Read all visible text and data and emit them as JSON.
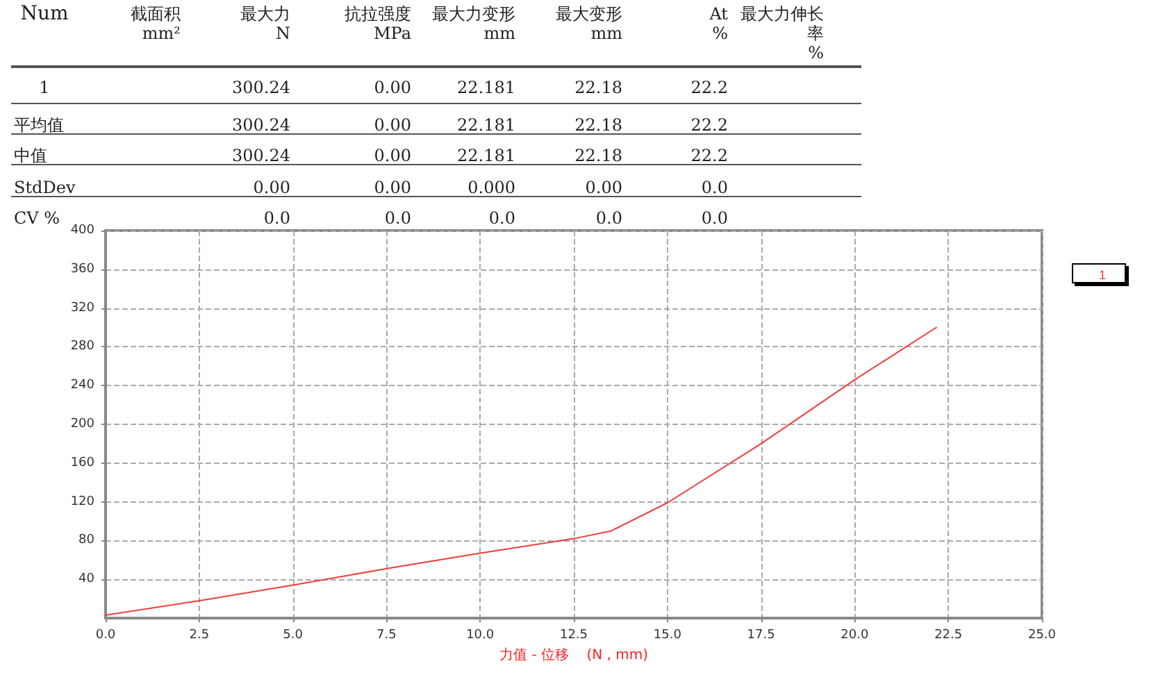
{
  "chart_data": {
    "type": "line",
    "xlabel": "力值 - 位移    (N , mm)",
    "annotations": [
      "Num",
      "截面积\nmm²",
      "最大力\nN",
      "抗拉强度\nMPa",
      "最大力变形\nmm",
      "最大变形\nmm",
      "At\n%",
      "最大力伸长率\n%",
      "1",
      "300.24",
      "0.00",
      "22.181",
      "22.18",
      "22.2",
      "平均值",
      "300.24",
      "0.00",
      "22.181",
      "22.18",
      "22.2",
      "中值",
      "300.24",
      "0.00",
      "22.181",
      "22.18",
      "22.2",
      "StdDev",
      "0.00",
      "0.00",
      "0.000",
      "0.00",
      "0.0",
      "CV %",
      "0.0",
      "0.0",
      "0.0",
      "0.0",
      "0.0"
    ],
    "series": [
      {
        "name": "1",
        "color": "#f03c3c",
        "x": [
          0,
          2.5,
          5,
          7.5,
          10,
          12.5,
          13.5,
          15,
          17.5,
          20,
          22.18
        ],
        "values": [
          3,
          18,
          34,
          51,
          67,
          82,
          90,
          119,
          180,
          246,
          300
        ]
      }
    ],
    "xlim": [
      0,
      25
    ],
    "xticks": [
      {
        "value": 0,
        "label": "0.0"
      },
      2.5,
      {
        "value": 5,
        "label": "5.0"
      },
      7.5,
      {
        "value": 10,
        "label": "10.0"
      },
      12.5,
      {
        "value": 15,
        "label": "15.0"
      },
      17.5,
      {
        "value": 20,
        "label": "20.0"
      },
      22.5,
      {
        "value": 25,
        "label": "25.0"
      }
    ],
    "ylim": [
      0,
      400
    ],
    "yticks": [
      40,
      80,
      120,
      160,
      200,
      240,
      280,
      320,
      360,
      400
    ],
    "grid": true,
    "legend": "top right",
    "marker": "none",
    "line_style": "solid"
  }
}
